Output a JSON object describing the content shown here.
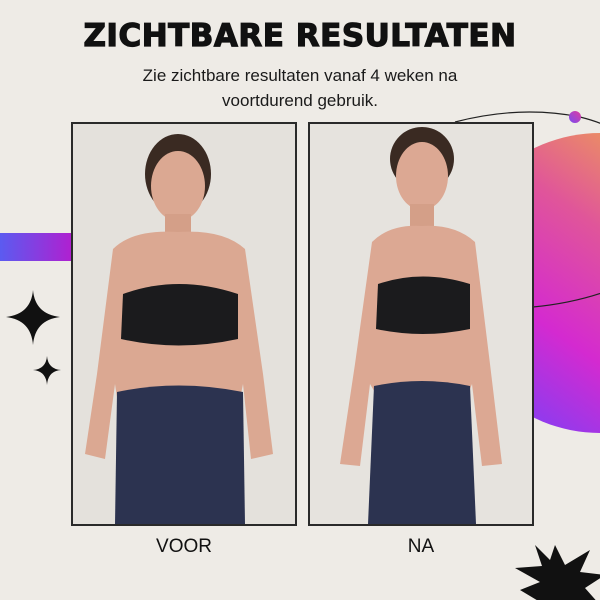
{
  "title": "ZICHTBARE RESULTATEN",
  "subtitle": {
    "line1": "Zie zichtbare resultaten vanaf 4 weken na",
    "line2": "voortdurend gebruik."
  },
  "photos": [
    {
      "label": "VOOR"
    },
    {
      "label": "NA"
    }
  ],
  "colors": {
    "background": "#eeebe6",
    "gradient_yellow": "#f5c431",
    "gradient_magenta": "#d42ad0",
    "gradient_purple": "#8a3cf0",
    "bar_blue": "#5b5bf0",
    "bar_purple": "#b020d0"
  },
  "decorations": [
    "gradient-circle",
    "orbit-line",
    "gradient-bar",
    "sparkle-icon",
    "starburst"
  ]
}
